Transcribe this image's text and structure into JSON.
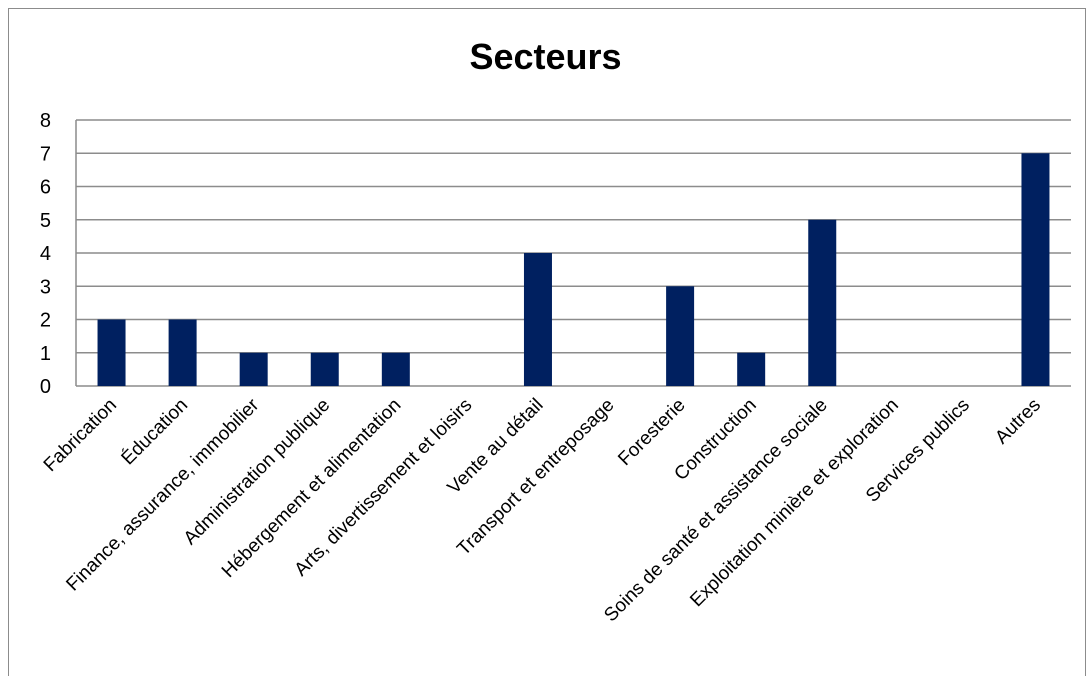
{
  "chart_data": {
    "type": "bar",
    "title": "Secteurs",
    "xlabel": "",
    "ylabel": "",
    "ylim": [
      0,
      8
    ],
    "yticks": [
      0,
      1,
      2,
      3,
      4,
      5,
      6,
      7,
      8
    ],
    "grid": true,
    "legend": "none",
    "bar_color": "#002060",
    "grid_color": "#8c8c8c",
    "categories": [
      "Fabrication",
      "Éducation",
      "Finance, assurance, immobilier",
      "Administration publique",
      "Hébergement et alimentation",
      "Arts, divertissement et loisirs",
      "Vente au détail",
      "Transport et entreposage",
      "Foresterie",
      "Construction",
      "Soins de santé et assistance sociale",
      "Exploitation minière et exploration",
      "Services publics",
      "Autres"
    ],
    "values": [
      2,
      2,
      1,
      1,
      1,
      0,
      4,
      0,
      3,
      1,
      5,
      0,
      0,
      7
    ]
  }
}
